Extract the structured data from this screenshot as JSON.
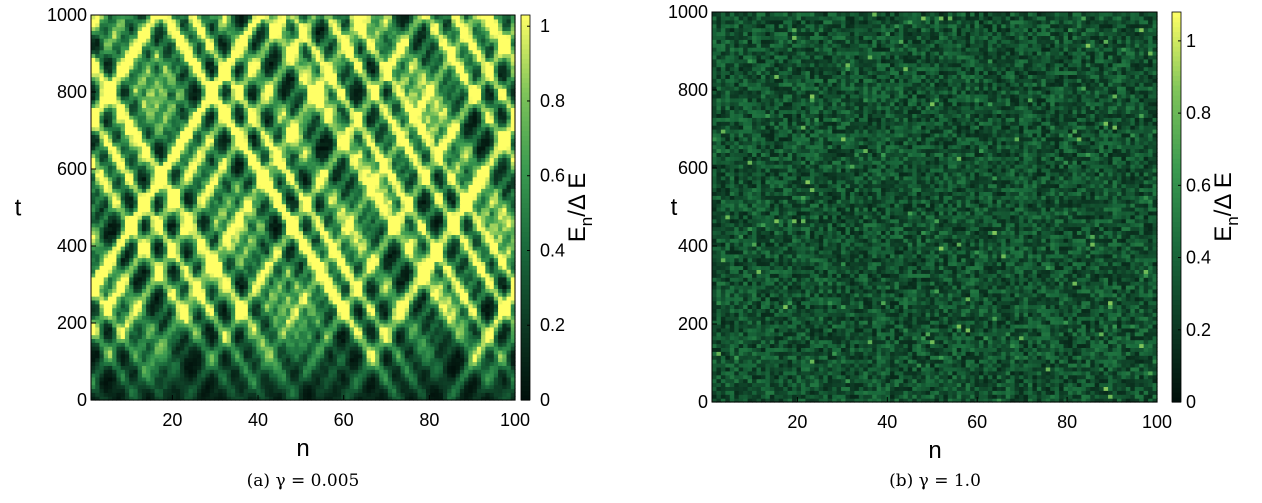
{
  "chart_data": [
    {
      "type": "heatmap",
      "panel": "a",
      "caption": "(a) γ = 0.005",
      "xlabel": "n",
      "ylabel": "t",
      "colorbar_label": [
        "E",
        "n",
        "/Δ E"
      ],
      "xlim": [
        1,
        100
      ],
      "ylim": [
        0,
        1000
      ],
      "xticks": [
        20,
        40,
        60,
        80,
        100
      ],
      "yticks": [
        0,
        200,
        400,
        600,
        800,
        1000
      ],
      "grid": false,
      "cells_x": 100,
      "cells_t": 100,
      "colorbar": {
        "range": [
          0,
          1.03
        ],
        "ticks": [
          0,
          0.2,
          0.4,
          0.6,
          0.8,
          1
        ]
      },
      "pattern": "crossing ballistic diagonal rays of energy, low energy near t=0",
      "mean_level": 0.2,
      "peak_level": 1.0,
      "colormap": [
        "#000f0a",
        "#0d3a24",
        "#1a6b3c",
        "#3a9a50",
        "#7fc45a",
        "#ffff66"
      ]
    },
    {
      "type": "heatmap",
      "panel": "b",
      "caption": "(b) γ = 1.0",
      "xlabel": "n",
      "ylabel": "t",
      "colorbar_label": [
        "E",
        "n",
        "/Δ E"
      ],
      "xlim": [
        1,
        100
      ],
      "ylim": [
        0,
        1000
      ],
      "xticks": [
        20,
        40,
        60,
        80,
        100
      ],
      "yticks": [
        0,
        200,
        400,
        600,
        800,
        1000
      ],
      "grid": false,
      "cells_x": 100,
      "cells_t": 100,
      "colorbar": {
        "range": [
          0,
          1.08
        ],
        "ticks": [
          0,
          0.2,
          0.4,
          0.6,
          0.8,
          1
        ]
      },
      "pattern": "uniform random noise, no spatial structure",
      "mean_level": 0.25,
      "peak_level": 0.7,
      "colormap": [
        "#000f0a",
        "#0d3a24",
        "#1a6b3c",
        "#3a9a50",
        "#7fc45a",
        "#ffff66"
      ]
    }
  ]
}
